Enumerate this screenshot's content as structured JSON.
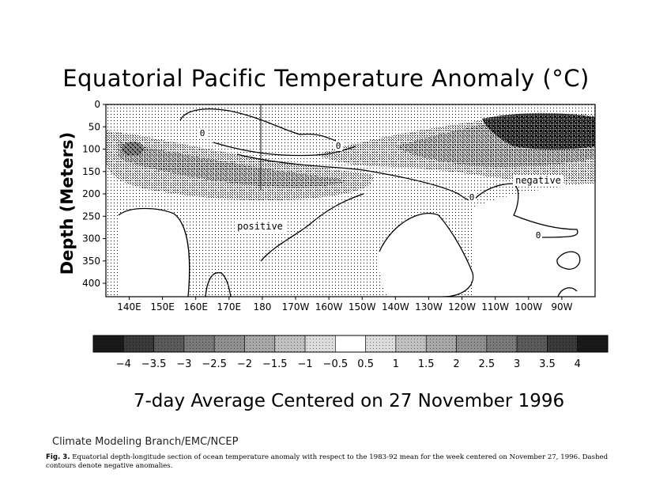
{
  "chart_data": {
    "type": "heatmap",
    "title": "Equatorial Pacific Temperature Anomaly (°C)",
    "subtitle": "7-day Average Centered on 27 November 1996",
    "ylabel": "Depth (Meters)",
    "xlabel": "",
    "x_ticks": [
      "140E",
      "150E",
      "160E",
      "170E",
      "180",
      "170W",
      "160W",
      "150W",
      "140W",
      "130W",
      "120W",
      "110W",
      "100W",
      "90W"
    ],
    "x_tick_positions_deg_east": [
      140,
      150,
      160,
      170,
      180,
      190,
      200,
      210,
      220,
      230,
      240,
      250,
      260,
      270
    ],
    "xlim_deg_east": [
      133,
      280
    ],
    "y_ticks": [
      0,
      50,
      100,
      150,
      200,
      250,
      300,
      350,
      400
    ],
    "ylim": [
      0,
      430
    ],
    "y_inverted": true,
    "colorbar_labels": [
      "-4",
      "-3.5",
      "-3",
      "-2.5",
      "-2",
      "-1.5",
      "-1",
      "-0.5",
      "0.5",
      "1",
      "1.5",
      "2",
      "2.5",
      "3",
      "3.5",
      "4"
    ],
    "colorbar_bins": [
      -4.5,
      -4,
      -3.5,
      -3,
      -2.5,
      -2,
      -1.5,
      -1,
      -0.5,
      0.5,
      1,
      1.5,
      2,
      2.5,
      3,
      3.5,
      4,
      4.5
    ],
    "contour_labels": [
      "0",
      "0",
      "0",
      "0"
    ],
    "annotations": [
      "positive",
      "negative"
    ],
    "regions": [
      {
        "name": "positive",
        "lon_range": [
          140,
          200
        ],
        "depth_range": [
          100,
          250
        ],
        "anomaly_max": 2.5
      },
      {
        "name": "negative",
        "lon_range": [
          215,
          280
        ],
        "depth_range": [
          30,
          200
        ],
        "anomaly_min": -4
      }
    ]
  },
  "credit": "Climate Modeling Branch/EMC/NCEP",
  "caption_label": "Fig. 3.",
  "caption_text": "Equatorial depth-longitude section of ocean temperature anomaly with respect to the 1983-92 mean for the week centered on November 27, 1996. Dashed contours denote negative anomalies."
}
